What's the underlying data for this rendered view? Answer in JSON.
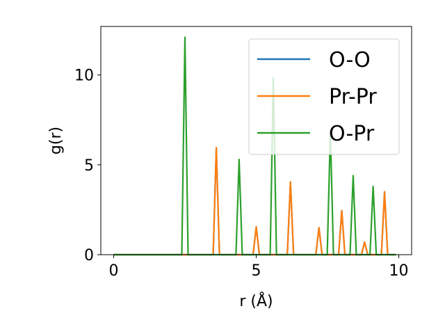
{
  "chart_data": {
    "type": "line",
    "xlabel": "r (Å)",
    "ylabel": "g(r)",
    "xlim": [
      -0.45,
      10.45
    ],
    "ylim": [
      0,
      12.7
    ],
    "x_ticks": [
      0,
      5,
      10
    ],
    "y_ticks": [
      0,
      5,
      10
    ],
    "grid": false,
    "legend_position": "top-right",
    "peak_half_width": 0.11,
    "x_end": 9.9,
    "series": [
      {
        "name": "O-O",
        "color": "#1f77b4",
        "peaks": [
          [
            3.6,
            5.95
          ],
          [
            5.0,
            1.55
          ],
          [
            6.2,
            4.05
          ],
          [
            7.2,
            1.5
          ],
          [
            8.0,
            2.45
          ],
          [
            8.8,
            0.7
          ],
          [
            9.5,
            3.5
          ]
        ]
      },
      {
        "name": "Pr-Pr",
        "color": "#ff7f0e",
        "peaks": [
          [
            3.6,
            5.95
          ],
          [
            5.0,
            1.55
          ],
          [
            6.2,
            4.05
          ],
          [
            7.2,
            1.5
          ],
          [
            8.0,
            2.45
          ],
          [
            8.8,
            0.7
          ],
          [
            9.5,
            3.5
          ]
        ]
      },
      {
        "name": "O-Pr",
        "color": "#2ca02c",
        "peaks": [
          [
            2.5,
            12.1
          ],
          [
            4.4,
            5.3
          ],
          [
            5.6,
            9.85
          ],
          [
            7.6,
            6.9
          ],
          [
            8.4,
            4.4
          ],
          [
            9.1,
            3.8
          ]
        ]
      }
    ]
  }
}
